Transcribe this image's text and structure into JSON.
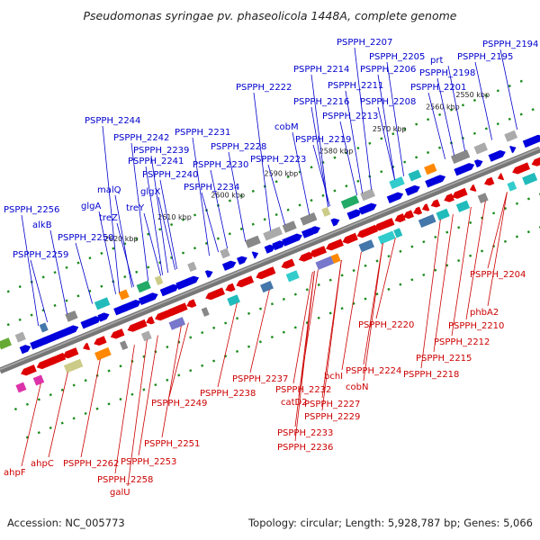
{
  "title": "Pseudomonas syringae pv. phaseolicola 1448A, complete genome",
  "footer": {
    "accession": "Accession: NC_005773",
    "summary": "Topology: circular; Length: 5,928,787 bp; Genes: 5,066"
  },
  "colors": {
    "forward": "#0000dd",
    "reverse": "#dd0000",
    "backbone": "#777777",
    "tick_green": "#1a8a1a",
    "label_blue": "#0000cc",
    "label_red": "#cc0000"
  },
  "ticks": [
    {
      "label": "2550 kbp"
    },
    {
      "label": "2560 kbp"
    },
    {
      "label": "2570 kbp"
    },
    {
      "label": "2580 kbp"
    },
    {
      "label": "2590 kbp"
    },
    {
      "label": "2600 kbp"
    },
    {
      "label": "2610 kbp"
    },
    {
      "label": "2620 kbp"
    }
  ],
  "forward_genes": [
    {
      "label": "PSPPH_2194"
    },
    {
      "label": "PSPPH_2195"
    },
    {
      "label": "prt"
    },
    {
      "label": "PSPPH_2198"
    },
    {
      "label": "PSPPH_2201"
    },
    {
      "label": "PSPPH_2205"
    },
    {
      "label": "PSPPH_2206"
    },
    {
      "label": "PSPPH_2207"
    },
    {
      "label": "PSPPH_2208"
    },
    {
      "label": "PSPPH_2211"
    },
    {
      "label": "PSPPH_2213"
    },
    {
      "label": "PSPPH_2214"
    },
    {
      "label": "PSPPH_2216"
    },
    {
      "label": "PSPPH_2219"
    },
    {
      "label": "PSPPH_2222"
    },
    {
      "label": "cobM"
    },
    {
      "label": "PSPPH_2223"
    },
    {
      "label": "PSPPH_2228"
    },
    {
      "label": "PSPPH_2230"
    },
    {
      "label": "PSPPH_2231"
    },
    {
      "label": "PSPPH_2234"
    },
    {
      "label": "PSPPH_2244"
    },
    {
      "label": "PSPPH_2242"
    },
    {
      "label": "PSPPH_2239"
    },
    {
      "label": "PSPPH_2241"
    },
    {
      "label": "PSPPH_2240"
    },
    {
      "label": "glgX"
    },
    {
      "label": "malQ"
    },
    {
      "label": "treY"
    },
    {
      "label": "glgA"
    },
    {
      "label": "treZ"
    },
    {
      "label": "PSPPH_2256"
    },
    {
      "label": "alkB"
    },
    {
      "label": "PSPPH_2250"
    },
    {
      "label": "PSPPH_2259"
    }
  ],
  "reverse_genes": [
    {
      "label": "PSPPH_2204"
    },
    {
      "label": "phbA2"
    },
    {
      "label": "PSPPH_2210"
    },
    {
      "label": "PSPPH_2212"
    },
    {
      "label": "PSPPH_2215"
    },
    {
      "label": "PSPPH_2218"
    },
    {
      "label": "PSPPH_2220"
    },
    {
      "label": "PSPPH_2224"
    },
    {
      "label": "cobN"
    },
    {
      "label": "bchI"
    },
    {
      "label": "PSPPH_2227"
    },
    {
      "label": "PSPPH_2229"
    },
    {
      "label": "PSPPH_2233"
    },
    {
      "label": "PSPPH_2236"
    },
    {
      "label": "catD2"
    },
    {
      "label": "PSPPH_2232"
    },
    {
      "label": "PSPPH_2237"
    },
    {
      "label": "PSPPH_2238"
    },
    {
      "label": "PSPPH_2249"
    },
    {
      "label": "PSPPH_2251"
    },
    {
      "label": "PSPPH_2253"
    },
    {
      "label": "PSPPH_2258"
    },
    {
      "label": "galU"
    },
    {
      "label": "PSPPH_2262"
    },
    {
      "label": "ahpC"
    },
    {
      "label": "ahpF"
    }
  ]
}
